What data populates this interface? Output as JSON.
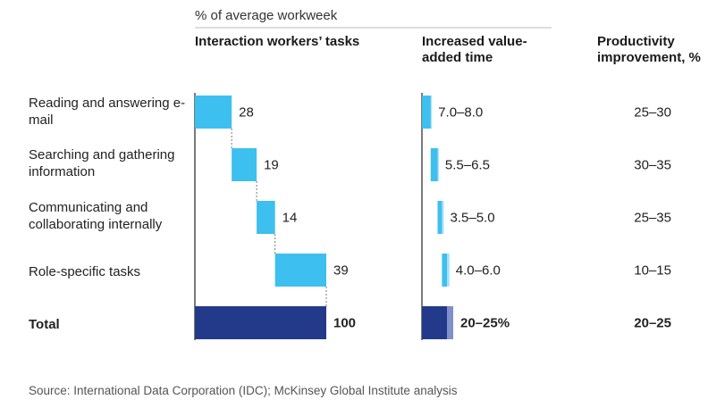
{
  "header": {
    "subtitle": "% of average workweek",
    "col_tasks": "Interaction workers’ tasks",
    "col_value_added": "Increased value-added time",
    "col_productivity": "Productivity improvement, %"
  },
  "source": "Source: International Data Corporation (IDC); McKinsey Global Institute analysis",
  "colors": {
    "bar": "#3dbfef",
    "total": "#233a8b",
    "total_light": "#8090c8",
    "axis": "#222222",
    "dash": "#7a7a7a"
  },
  "chart_data": {
    "type": "bar",
    "subtype": "waterfall-table",
    "title": "",
    "subtitle": "% of average workweek",
    "categories": [
      "Reading and answering e-mail",
      "Searching and gathering information",
      "Communicating and collaborating internally",
      "Role-specific tasks",
      "Total"
    ],
    "series": [
      {
        "name": "Interaction workers’ tasks",
        "values": [
          28,
          19,
          14,
          39,
          100
        ],
        "labels": [
          "28",
          "19",
          "14",
          "39",
          "100"
        ]
      },
      {
        "name": "Increased value-added time",
        "ranges": [
          [
            7.0,
            8.0
          ],
          [
            5.5,
            6.5
          ],
          [
            3.5,
            5.0
          ],
          [
            4.0,
            6.0
          ],
          [
            20,
            25
          ]
        ],
        "labels": [
          "7.0–8.0",
          "5.5–6.5",
          "3.5–5.0",
          "4.0–6.0",
          "20–25%"
        ]
      },
      {
        "name": "Productivity improvement, %",
        "labels": [
          "25–30",
          "30–35",
          "25–35",
          "10–15",
          "20–25"
        ]
      }
    ]
  }
}
